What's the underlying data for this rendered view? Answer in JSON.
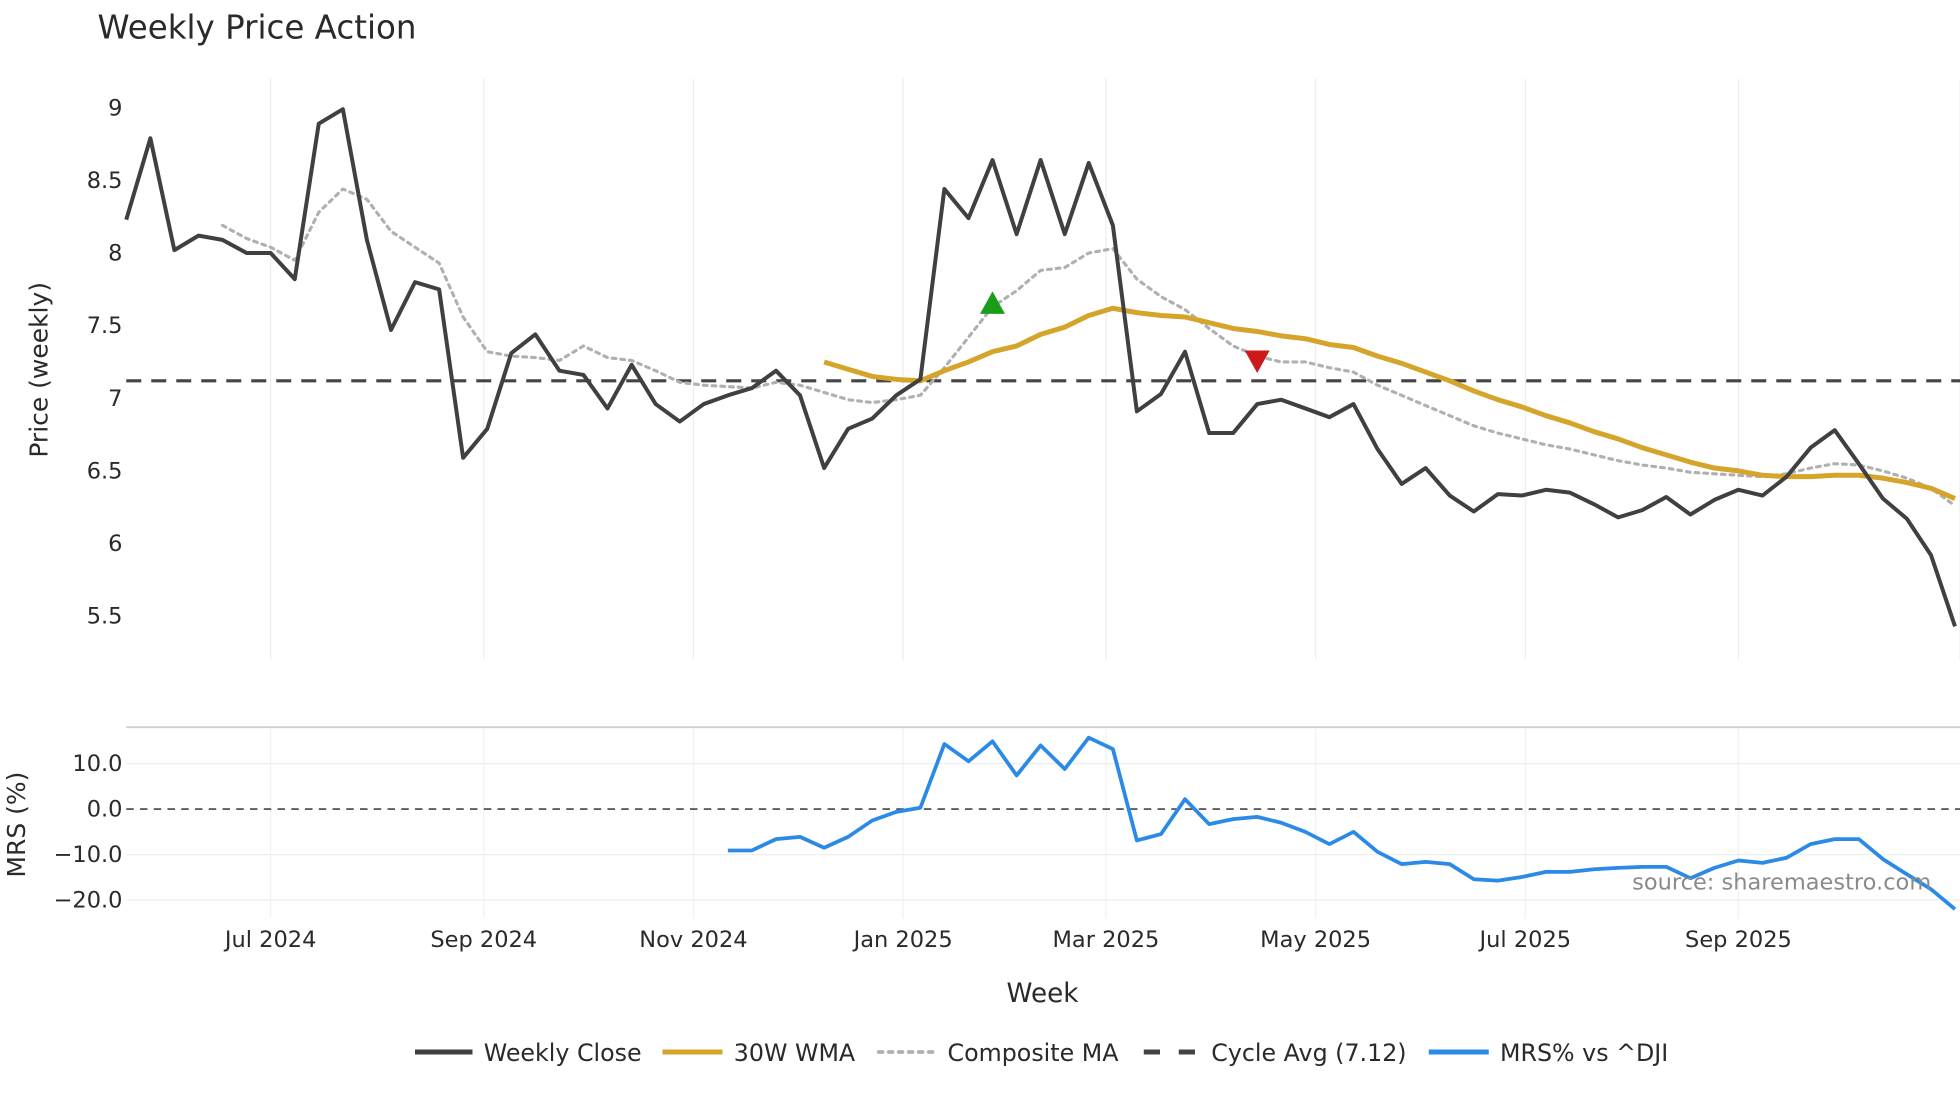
{
  "chart_data": {
    "type": "line",
    "title": "Weekly Price Action",
    "xlabel": "Week",
    "start_week": "2024-05-20",
    "price_panel": {
      "ylabel": "Price (weekly)",
      "ylim": [
        5.2,
        9.2
      ],
      "yticks": [
        5.5,
        6,
        6.5,
        7,
        7.5,
        8,
        8.5,
        9
      ],
      "ytick_labels": [
        "5.5",
        "6",
        "6.5",
        "7",
        "7.5",
        "8",
        "8.5",
        "9"
      ],
      "series": [
        {
          "name": "Weekly Close",
          "color": "#404040",
          "style": "solid",
          "values": [
            8.23,
            8.79,
            8.02,
            8.12,
            8.09,
            8.0,
            8.0,
            7.82,
            8.89,
            8.99,
            8.09,
            7.47,
            7.8,
            7.75,
            6.59,
            6.79,
            7.31,
            7.44,
            7.19,
            7.16,
            6.93,
            7.23,
            6.96,
            6.84,
            6.96,
            7.02,
            7.07,
            7.19,
            7.02,
            6.52,
            6.79,
            6.86,
            7.02,
            7.13,
            8.44,
            8.24,
            8.64,
            8.13,
            8.64,
            8.13,
            8.62,
            8.19,
            6.91,
            7.03,
            7.32,
            6.76,
            6.76,
            6.96,
            6.99,
            6.93,
            6.87,
            6.96,
            6.65,
            6.41,
            6.52,
            6.33,
            6.22,
            6.34,
            6.33,
            6.37,
            6.35,
            6.27,
            6.18,
            6.23,
            6.32,
            6.2,
            6.3,
            6.37,
            6.33,
            6.46,
            6.66,
            6.78,
            6.55,
            6.31,
            6.17,
            5.92,
            5.43
          ]
        },
        {
          "name": "30W WMA",
          "color": "#d4a52a",
          "style": "solid",
          "values": [
            7.25,
            7.2,
            7.15,
            7.13,
            7.12,
            7.19,
            7.25,
            7.32,
            7.36,
            7.44,
            7.49,
            7.57,
            7.62,
            7.59,
            7.57,
            7.56,
            7.52,
            7.48,
            7.46,
            7.43,
            7.41,
            7.37,
            7.35,
            7.29,
            7.24,
            7.18,
            7.12,
            7.05,
            6.99,
            6.94,
            6.88,
            6.83,
            6.77,
            6.72,
            6.66,
            6.61,
            6.56,
            6.52,
            6.5,
            6.47,
            6.46,
            6.46,
            6.47,
            6.47,
            6.45,
            6.42,
            6.38,
            6.31
          ]
        },
        {
          "name": "Composite MA",
          "color": "#b0b0b0",
          "style": "dotted",
          "values": [
            8.19,
            8.1,
            8.04,
            7.95,
            8.28,
            8.44,
            8.37,
            8.15,
            8.04,
            7.93,
            7.56,
            7.32,
            7.29,
            7.28,
            7.26,
            7.36,
            7.28,
            7.26,
            7.19,
            7.11,
            7.09,
            7.08,
            7.07,
            7.11,
            7.09,
            7.04,
            6.99,
            6.97,
            6.99,
            7.02,
            7.21,
            7.42,
            7.63,
            7.74,
            7.88,
            7.9,
            8.0,
            8.03,
            7.82,
            7.7,
            7.61,
            7.48,
            7.36,
            7.29,
            7.25,
            7.25,
            7.21,
            7.18,
            7.09,
            7.02,
            6.95,
            6.88,
            6.81,
            6.76,
            6.72,
            6.68,
            6.65,
            6.61,
            6.57,
            6.54,
            6.52,
            6.49,
            6.48,
            6.47,
            6.46,
            6.48,
            6.52,
            6.55,
            6.54,
            6.5,
            6.45,
            6.38,
            6.26
          ]
        }
      ],
      "hline": {
        "name": "Cycle Avg (7.12)",
        "value": 7.12,
        "color": "#444444",
        "style": "dashed"
      },
      "markers": [
        {
          "type": "buy",
          "shape": "triangle-up",
          "week_index": 36,
          "value": 7.65,
          "color": "#1a9e1a"
        },
        {
          "type": "sell",
          "shape": "triangle-down",
          "week_index": 47,
          "value": 7.26,
          "color": "#cc1a1a"
        }
      ]
    },
    "mrs_panel": {
      "ylabel": "MRS (%)",
      "ylim": [
        -24,
        18
      ],
      "yticks": [
        -20,
        -10,
        0,
        10
      ],
      "ytick_labels": [
        "−20.0",
        "−10.0",
        "0.0",
        "10.0"
      ],
      "zero_line": 0,
      "series": {
        "name": "MRS% vs ^DJI",
        "color": "#2b8ae6",
        "values": [
          -9.1,
          -9.1,
          -6.6,
          -6.1,
          -8.5,
          -6.1,
          -2.5,
          -0.6,
          0.3,
          14.3,
          10.5,
          14.9,
          7.4,
          14.0,
          8.8,
          15.7,
          13.2,
          -6.9,
          -5.5,
          2.2,
          -3.3,
          -2.2,
          -1.7,
          -3.0,
          -5.0,
          -7.7,
          -5.0,
          -9.4,
          -12.1,
          -11.6,
          -12.1,
          -15.4,
          -15.7,
          -14.9,
          -13.8,
          -13.8,
          -13.2,
          -12.9,
          -12.7,
          -12.7,
          -15.2,
          -12.9,
          -11.3,
          -11.8,
          -10.7,
          -7.7,
          -6.6,
          -6.6,
          -11.0,
          -14.3,
          -17.6,
          -22.0
        ]
      }
    },
    "xticks": [
      {
        "date": "2024-07-01",
        "label": "Jul 2024"
      },
      {
        "date": "2024-09-01",
        "label": "Sep 2024"
      },
      {
        "date": "2024-11-01",
        "label": "Nov 2024"
      },
      {
        "date": "2025-01-01",
        "label": "Jan 2025"
      },
      {
        "date": "2025-03-01",
        "label": "Mar 2025"
      },
      {
        "date": "2025-05-01",
        "label": "May 2025"
      },
      {
        "date": "2025-07-01",
        "label": "Jul 2025"
      },
      {
        "date": "2025-09-01",
        "label": "Sep 2025"
      }
    ],
    "legend": {
      "placement": "bottom",
      "items": [
        {
          "label": "Weekly Close",
          "color": "#404040",
          "style": "solid"
        },
        {
          "label": "30W WMA",
          "color": "#d4a52a",
          "style": "solid"
        },
        {
          "label": "Composite MA",
          "color": "#b0b0b0",
          "style": "dotted"
        },
        {
          "label": "Cycle Avg (7.12)",
          "color": "#444444",
          "style": "dashed"
        },
        {
          "label": "MRS% vs ^DJI",
          "color": "#2b8ae6",
          "style": "solid"
        }
      ]
    },
    "annotation": "source: sharemaestro.com"
  }
}
